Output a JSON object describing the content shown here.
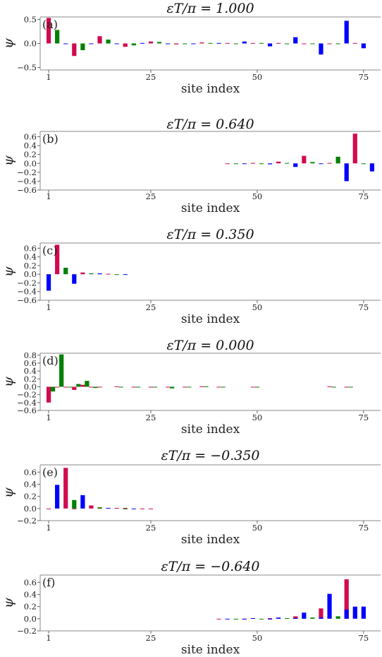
{
  "colors": {
    "red": "#d10a50",
    "green": "#008000",
    "blue": "#0000ff"
  },
  "chart_data": [
    {
      "type": "bar",
      "panel": "(a)",
      "title": "εT/π = 1.000",
      "xlabel": "site index",
      "ylabel": "ψ",
      "xticks": [
        1,
        25,
        50,
        75
      ],
      "yticks": [
        -0.5,
        0.0,
        0.5
      ],
      "ylim": [
        -0.55,
        0.55
      ],
      "xlim": [
        -1,
        79
      ],
      "series": [
        {
          "x": [
            1,
            7,
            13,
            19,
            25,
            31,
            37,
            43,
            49,
            55,
            61,
            67,
            73
          ],
          "values": [
            0.53,
            -0.26,
            0.15,
            -0.07,
            0.04,
            -0.02,
            0.02,
            0.01,
            0.01,
            0.01,
            0.0,
            0.0,
            0.01
          ]
        },
        {
          "x": [
            3,
            9,
            15,
            21,
            27,
            33,
            39,
            45,
            51,
            57,
            63,
            69
          ],
          "values": [
            0.28,
            -0.14,
            0.08,
            -0.04,
            0.03,
            -0.01,
            0.01,
            0.0,
            0.01,
            0.0,
            0.0,
            0.0
          ]
        },
        {
          "x": [
            5,
            11,
            17,
            23,
            29,
            35,
            41,
            47,
            53,
            59,
            65,
            71,
            75
          ],
          "values": [
            0.0,
            0.0,
            0.0,
            0.01,
            0.0,
            -0.01,
            0.01,
            0.04,
            -0.06,
            0.13,
            -0.23,
            0.47,
            -0.1
          ]
        }
      ]
    },
    {
      "type": "bar",
      "panel": "(b)",
      "title": "εT/π = 0.640",
      "xlabel": "site index",
      "ylabel": "ψ",
      "xticks": [
        1,
        25,
        50,
        75
      ],
      "yticks": [
        -0.6,
        -0.4,
        -0.2,
        0.0,
        0.2,
        0.4,
        0.6
      ],
      "ylim": [
        -0.6,
        0.72
      ],
      "xlim": [
        -1,
        79
      ],
      "series": [
        {
          "x": [
            43,
            49,
            55,
            61,
            67,
            73
          ],
          "values": [
            0.0,
            0.01,
            0.04,
            0.17,
            0.01,
            0.67
          ]
        },
        {
          "x": [
            45,
            51,
            57,
            63,
            69,
            75
          ],
          "values": [
            0.0,
            0.0,
            0.01,
            0.03,
            0.15,
            0.0
          ]
        },
        {
          "x": [
            47,
            53,
            59,
            65,
            71,
            77
          ],
          "values": [
            0.0,
            -0.02,
            -0.08,
            0.0,
            -0.4,
            -0.18
          ]
        }
      ]
    },
    {
      "type": "bar",
      "panel": "(c)",
      "title": "εT/π = 0.350",
      "xlabel": "site index",
      "ylabel": "ψ",
      "xticks": [
        1,
        25,
        50,
        75
      ],
      "yticks": [
        -0.6,
        -0.4,
        -0.2,
        0.0,
        0.2,
        0.4,
        0.6
      ],
      "ylim": [
        -0.6,
        0.72
      ],
      "xlim": [
        -1,
        79
      ],
      "series": [
        {
          "x": [
            1,
            7,
            13,
            19
          ],
          "values": [
            -0.38,
            -0.22,
            0.02,
            0.0
          ]
        },
        {
          "x": [
            3,
            9,
            15
          ],
          "values": [
            0.68,
            0.04,
            0.01
          ]
        },
        {
          "x": [
            5,
            11,
            17
          ],
          "values": [
            0.15,
            0.02,
            0.0
          ]
        }
      ]
    },
    {
      "type": "bar",
      "panel": "(d)",
      "title": "εT/π = 0.000",
      "xlabel": "site index",
      "ylabel": "ψ",
      "xticks": [
        1,
        25,
        50,
        75
      ],
      "yticks": [
        -0.6,
        -0.4,
        -0.2,
        0.0,
        0.2,
        0.4,
        0.6,
        0.8
      ],
      "ylim": [
        -0.6,
        0.85
      ],
      "xlim": [
        -1,
        79
      ],
      "series": [
        {
          "x": [
            1,
            3,
            5,
            7,
            9,
            11,
            13,
            17,
            21,
            25,
            29,
            33,
            37,
            41,
            49,
            67,
            71
          ],
          "values": [
            -0.4,
            0.0,
            0.0,
            -0.08,
            0.05,
            0.0,
            0.0,
            0.01,
            0.0,
            0.0,
            0.0,
            0.0,
            0.01,
            0.0,
            0.0,
            0.01,
            0.0
          ]
        },
        {
          "x": [
            2,
            4,
            6,
            8,
            10,
            12,
            18,
            22,
            26,
            30,
            34,
            38,
            42,
            50,
            68,
            72
          ],
          "values": [
            -0.12,
            0.82,
            0.0,
            0.07,
            0.15,
            -0.03,
            0.0,
            0.0,
            0.0,
            -0.04,
            0.0,
            0.01,
            0.0,
            0.0,
            0.0,
            0.0
          ]
        }
      ]
    },
    {
      "type": "bar",
      "panel": "(e)",
      "title": "εT/π = −0.350",
      "xlabel": "site index",
      "ylabel": "ψ",
      "xticks": [
        1,
        25,
        50,
        75
      ],
      "yticks": [
        -0.2,
        0.0,
        0.2,
        0.4,
        0.6
      ],
      "ylim": [
        -0.2,
        0.72
      ],
      "xlim": [
        -1,
        79
      ],
      "series": [
        {
          "x": [
            1,
            7,
            13,
            19,
            25
          ],
          "values": [
            0.0,
            0.0,
            0.01,
            0.01,
            0.0
          ]
        },
        {
          "x": [
            3,
            9,
            15,
            21
          ],
          "values": [
            0.39,
            0.22,
            0.01,
            0.0
          ]
        },
        {
          "x": [
            5,
            11,
            17,
            23
          ],
          "values": [
            0.67,
            0.05,
            0.01,
            0.0
          ]
        },
        {
          "x": [
            7,
            13,
            19
          ],
          "values": [
            0.14,
            0.02,
            0.0
          ]
        }
      ]
    },
    {
      "type": "bar",
      "panel": "(f)",
      "title": "εT/π = −0.640",
      "xlabel": "site index",
      "ylabel": "ψ",
      "xticks": [
        1,
        25,
        50,
        75
      ],
      "yticks": [
        -0.2,
        0.0,
        0.2,
        0.4,
        0.6
      ],
      "ylim": [
        -0.2,
        0.72
      ],
      "xlim": [
        -1,
        79
      ],
      "series": [
        {
          "x": [
            41,
            47,
            53,
            59,
            65,
            71
          ],
          "values": [
            0.0,
            0.0,
            0.01,
            0.04,
            0.17,
            0.65
          ]
        },
        {
          "x": [
            43,
            49,
            55,
            61,
            67,
            73
          ],
          "values": [
            0.0,
            0.01,
            0.02,
            0.1,
            0.41,
            0.2
          ]
        },
        {
          "x": [
            45,
            51,
            57,
            63,
            69
          ],
          "values": [
            0.0,
            0.0,
            0.01,
            0.02,
            0.04
          ]
        },
        {
          "x": [
            47,
            53,
            59,
            65,
            71,
            75
          ],
          "values": [
            0.0,
            0.0,
            0.01,
            0.02,
            0.15,
            0.2
          ]
        }
      ]
    }
  ]
}
